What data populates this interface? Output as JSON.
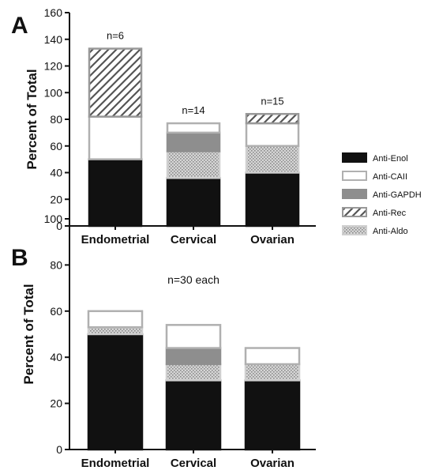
{
  "figure": {
    "legend": [
      {
        "name": "Anti-Enol",
        "style": "solid-black"
      },
      {
        "name": "Anti-CAII",
        "style": "white"
      },
      {
        "name": "Anti-GAPDH",
        "style": "solid-gray"
      },
      {
        "name": "Anti-Rec",
        "style": "diagonal-hatch"
      },
      {
        "name": "Anti-Aldo",
        "style": "dotted"
      }
    ],
    "legend_placement": "right"
  },
  "chart_data": [
    {
      "panel": "A",
      "type": "bar",
      "stacked": true,
      "ylabel": "Percent of Total",
      "xlabel": "",
      "ylim": [
        0,
        160
      ],
      "yticks": [
        0,
        20,
        40,
        60,
        80,
        100,
        120,
        140,
        160
      ],
      "categories": [
        "Endometrial",
        "Cervical",
        "Ovarian"
      ],
      "annotations": [
        "n=6",
        "n=14",
        "n=15"
      ],
      "series": [
        {
          "name": "Anti-Enol",
          "values": [
            50,
            36,
            40
          ]
        },
        {
          "name": "Anti-Aldo",
          "values": [
            0,
            20,
            20
          ]
        },
        {
          "name": "Anti-GAPDH",
          "values": [
            0,
            14,
            0
          ]
        },
        {
          "name": "Anti-CAII",
          "values": [
            32,
            7,
            17
          ]
        },
        {
          "name": "Anti-Rec",
          "values": [
            51,
            0,
            7
          ]
        }
      ]
    },
    {
      "panel": "B",
      "type": "bar",
      "stacked": true,
      "ylabel": "Percent of Total",
      "xlabel": "",
      "ylim": [
        0,
        100
      ],
      "yticks": [
        0,
        20,
        40,
        60,
        80,
        100
      ],
      "categories": [
        "Endometrial",
        "Cervical",
        "Ovarian"
      ],
      "annotation": "n=30 each",
      "series": [
        {
          "name": "Anti-Enol",
          "values": [
            50,
            30,
            30
          ]
        },
        {
          "name": "Anti-Aldo",
          "values": [
            3,
            7,
            7
          ]
        },
        {
          "name": "Anti-GAPDH",
          "values": [
            0,
            7,
            0
          ]
        },
        {
          "name": "Anti-CAII",
          "values": [
            7,
            10,
            7
          ]
        },
        {
          "name": "Anti-Rec",
          "values": [
            0,
            0,
            0
          ]
        }
      ]
    }
  ]
}
